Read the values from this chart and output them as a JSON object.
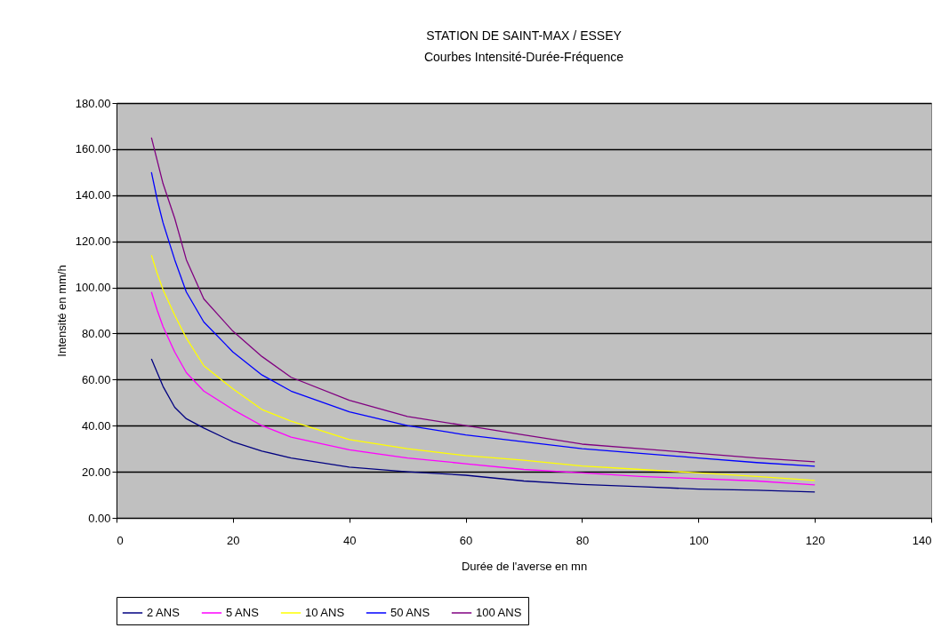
{
  "chart_data": {
    "type": "line",
    "title": "STATION DE SAINT-MAX / ESSEY",
    "subtitle": "Courbes Intensité-Durée-Fréquence",
    "xlabel": "Durée de l'averse en mn",
    "ylabel": "Intensité en mm/h",
    "x": [
      6,
      7,
      8,
      10,
      12,
      15,
      20,
      25,
      30,
      40,
      50,
      60,
      70,
      80,
      90,
      100,
      110,
      120
    ],
    "series": [
      {
        "name": "2 ANS",
        "color": "#000080",
        "values": [
          69,
          63,
          57,
          48,
          43,
          39,
          33,
          29,
          26,
          22,
          20,
          18.5,
          16,
          14.5,
          13.5,
          12.5,
          12,
          11.2
        ]
      },
      {
        "name": "5 ANS",
        "color": "#ff00ff",
        "values": [
          98,
          90,
          83,
          72,
          63,
          55,
          47,
          40,
          35,
          29.5,
          26,
          23.5,
          21,
          19.5,
          18,
          17,
          16,
          14.3
        ]
      },
      {
        "name": "10 ANS",
        "color": "#ffff00",
        "values": [
          114,
          106,
          99,
          88,
          78,
          66,
          56,
          47,
          42,
          34,
          30,
          27,
          25,
          22.5,
          21,
          19.5,
          18,
          16.2
        ]
      },
      {
        "name": "50 ANS",
        "color": "#0000ff",
        "values": [
          150,
          138,
          128,
          112,
          98,
          85,
          72,
          62,
          55,
          46,
          40,
          36,
          33,
          30,
          28,
          26,
          24,
          22.4
        ]
      },
      {
        "name": "100 ANS",
        "color": "#800080",
        "values": [
          165,
          155,
          145,
          130,
          112,
          95,
          81,
          70,
          61,
          51,
          44,
          40,
          36,
          32,
          30,
          28,
          26,
          24.3
        ]
      }
    ],
    "xlim": [
      0,
      140
    ],
    "xticks": [
      0,
      20,
      40,
      60,
      80,
      100,
      120,
      140
    ],
    "ylim": [
      0,
      180
    ],
    "yticks": [
      {
        "value": 0,
        "label": "0.00"
      },
      {
        "value": 20,
        "label": "20.00"
      },
      {
        "value": 40,
        "label": "40.00"
      },
      {
        "value": 60,
        "label": "60.00"
      },
      {
        "value": 80,
        "label": "80.00"
      },
      {
        "value": 100,
        "label": "100.00"
      },
      {
        "value": 120,
        "label": "120.00"
      },
      {
        "value": 140,
        "label": "140.00"
      },
      {
        "value": 160,
        "label": "160.00"
      },
      {
        "value": 180,
        "label": "180.00"
      }
    ],
    "grid": "y",
    "legend": "bottom",
    "marker": "none",
    "line_style": "solid"
  }
}
